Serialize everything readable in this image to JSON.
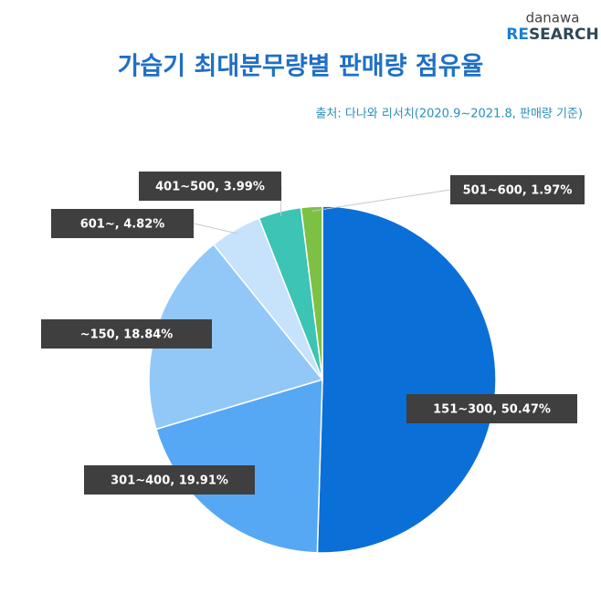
{
  "logo": {
    "top": "danawa",
    "accent": "RE",
    "rest": "SEARCH"
  },
  "chart_data": {
    "type": "pie",
    "title": "가습기 최대분무량별 판매량 점유율",
    "subtitle": "출처: 다나와 리서치(2020.9~2021.8, 판매량 기준)",
    "categories": [
      "151~300",
      "301~400",
      "~150",
      "601~",
      "401~500",
      "501~600"
    ],
    "values": [
      50.47,
      19.91,
      18.84,
      4.82,
      3.99,
      1.97
    ],
    "value_labels": [
      "151~300,  50.47%",
      "301~400,  19.91%",
      "~150,  18.84%",
      "601~,  4.82%",
      "401~500,  3.99%",
      "501~600,  1.97%"
    ],
    "colors": [
      "#0b6fd8",
      "#56a8f4",
      "#92c8f8",
      "#c7e2fb",
      "#3cc4b5",
      "#7cc143"
    ]
  }
}
